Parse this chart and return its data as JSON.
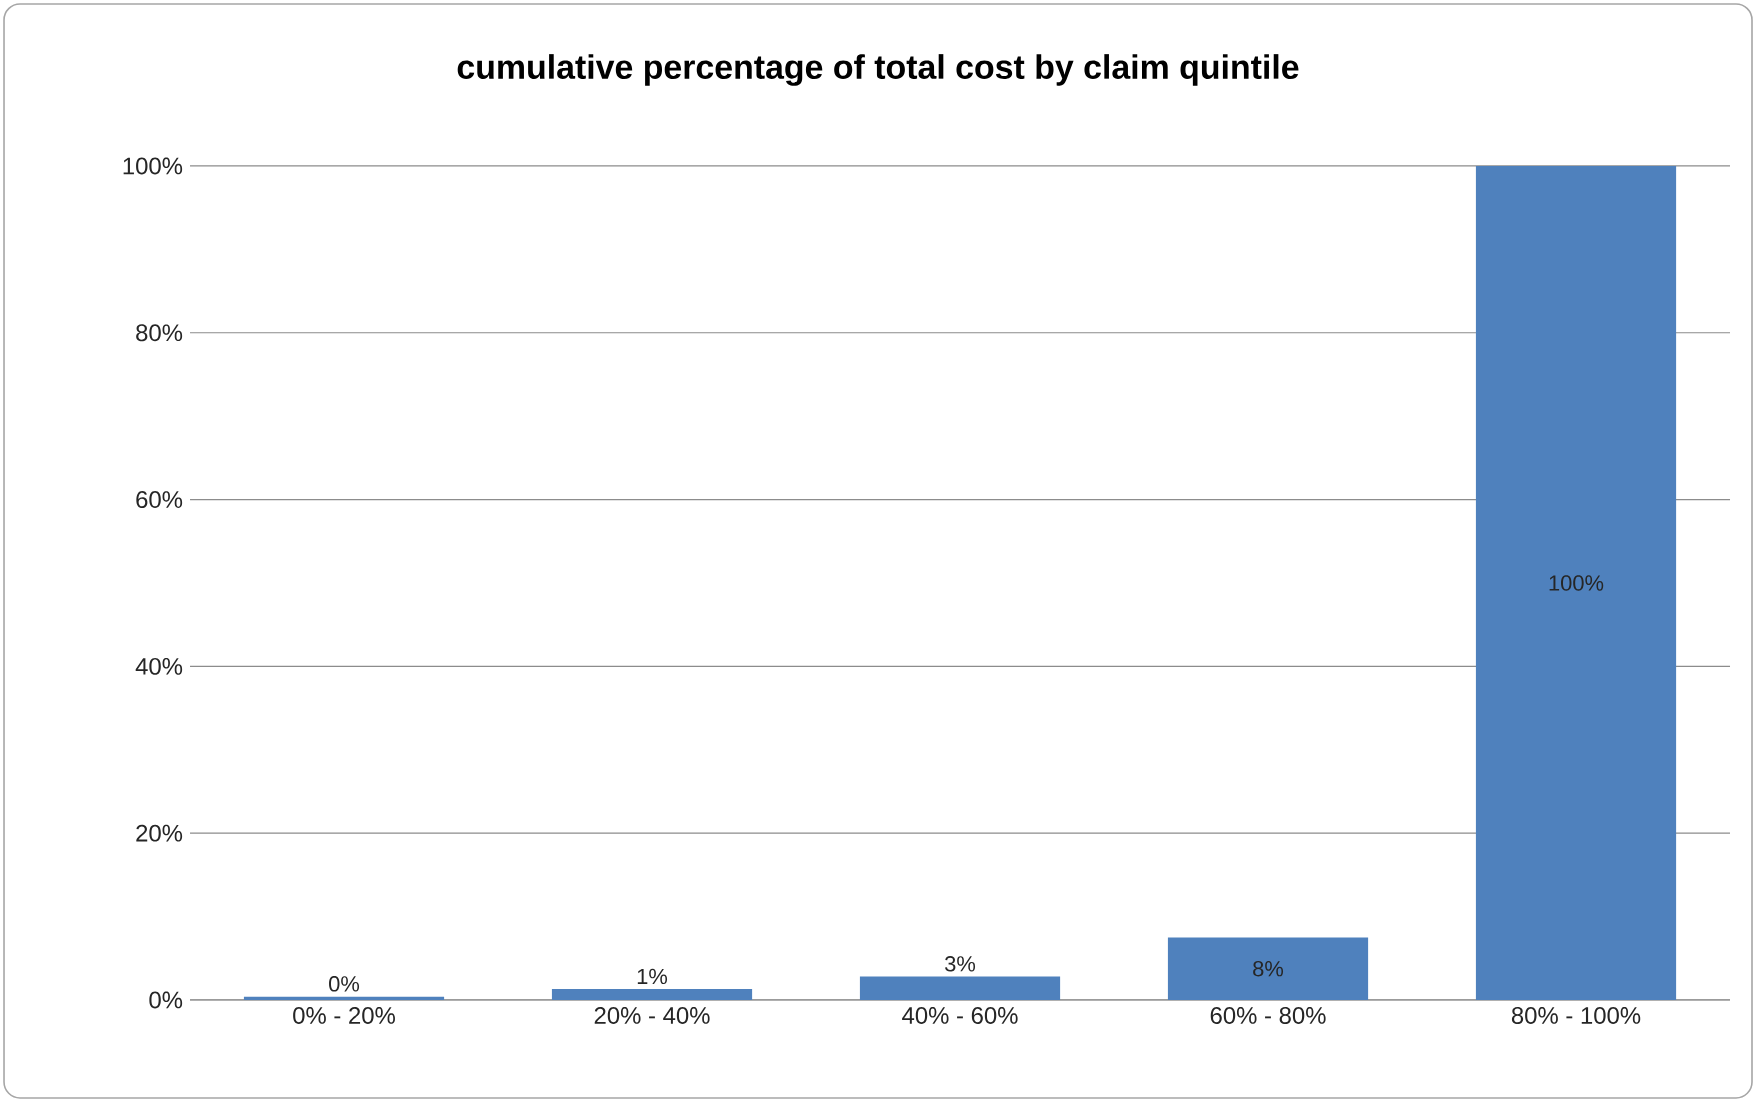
{
  "chart_data": {
    "type": "bar",
    "title": "cumulative percentage of total cost by claim quintile",
    "categories": [
      "0% - 20%",
      "20% - 40%",
      "40% - 60%",
      "60% - 80%",
      "80% - 100%"
    ],
    "values": [
      0.4,
      1.3,
      2.8,
      7.5,
      100
    ],
    "value_labels": [
      "0%",
      "1%",
      "3%",
      "8%",
      "100%"
    ],
    "color": "#4f81bd",
    "ylim": [
      0,
      100
    ],
    "yticks": [
      {
        "value": 0,
        "label": "0%"
      },
      {
        "value": 20,
        "label": "20%"
      },
      {
        "value": 40,
        "label": "40%"
      },
      {
        "value": 60,
        "label": "60%"
      },
      {
        "value": 80,
        "label": "80%"
      },
      {
        "value": 100,
        "label": "100%"
      }
    ],
    "grid": "y"
  }
}
